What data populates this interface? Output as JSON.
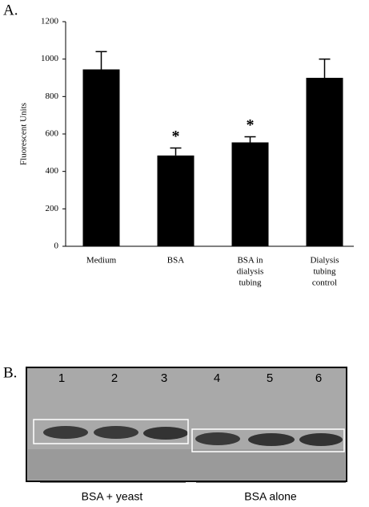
{
  "chart_data": {
    "type": "bar",
    "y_label": "Fluorescent Units",
    "categories": [
      [
        "Medium"
      ],
      [
        "BSA"
      ],
      [
        "BSA in",
        "dialysis",
        "tubing"
      ],
      [
        "Dialysis",
        "tubing",
        "control"
      ]
    ],
    "values": [
      945,
      485,
      555,
      900
    ],
    "errors": [
      95,
      40,
      30,
      100
    ],
    "markers": [
      null,
      "*",
      "*",
      null
    ],
    "color": "#000000",
    "ylim": [
      0,
      1200
    ],
    "yticks": [
      0,
      200,
      400,
      600,
      800,
      1000,
      1200
    ],
    "grid": false
  },
  "panel_labels": [
    "A.",
    "B."
  ],
  "gel": {
    "lanes": [
      "1",
      "2",
      "3",
      "4",
      "5",
      "6"
    ],
    "groups": [
      "BSA + yeast",
      "BSA alone"
    ]
  }
}
